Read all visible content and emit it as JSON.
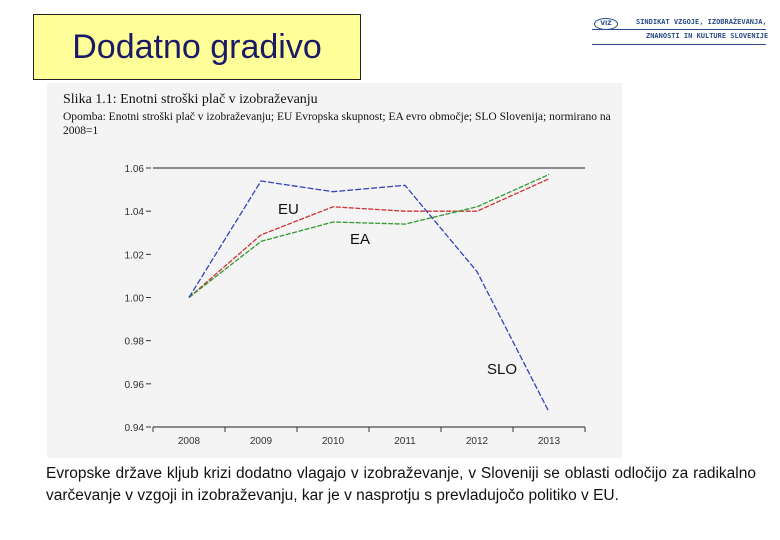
{
  "slide": {
    "title": "Dodatno gradivo",
    "logo": {
      "mark": "VIZ",
      "line1": "SINDIKAT VZGOJE, IZOBRAŽEVANJA,",
      "line2": "ZNANOSTI IN KULTURE SLOVENIJE",
      "color": "#2a4a8a"
    },
    "body_text": "Evropske države kljub krizi dodatno vlagajo v izobraževanje, v Sloveniji se oblasti odločijo za radikalno varčevanje v vzgoji in izobraževanju, kar je v nasprotju s prevladujočo politiko v EU."
  },
  "chart_data": {
    "type": "line",
    "title": "Slika 1.1: Enotni stroški plač v izobraževanju",
    "note": "Opomba: Enotni stroški plač v izobraževanju; EU Evropska skupnost; EA evro območje; SLO Slovenija; normirano na 2008=1",
    "x": [
      "2008",
      "2009",
      "2010",
      "2011",
      "2012",
      "2013"
    ],
    "ylim": [
      0.94,
      1.06
    ],
    "yticks": [
      "0.94",
      "0.96",
      "0.98",
      "1.00",
      "1.02",
      "1.04",
      "1.06"
    ],
    "grid": false,
    "series": [
      {
        "name": "EU",
        "color": "#cc3333",
        "values": [
          1.0,
          1.029,
          1.042,
          1.04,
          1.04,
          1.055
        ]
      },
      {
        "name": "EA",
        "color": "#339933",
        "values": [
          1.0,
          1.026,
          1.035,
          1.034,
          1.042,
          1.057
        ]
      },
      {
        "name": "SLO",
        "color": "#3344bb",
        "values": [
          1.0,
          1.054,
          1.049,
          1.052,
          1.012,
          0.947
        ]
      }
    ]
  }
}
